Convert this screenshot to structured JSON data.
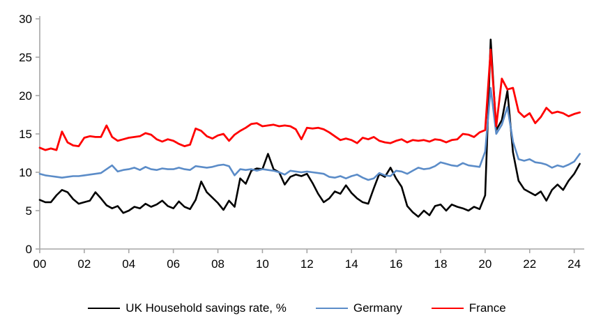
{
  "chart_data": {
    "type": "line",
    "title": "",
    "xlabel": "",
    "ylabel": "",
    "x_start": 2000,
    "x_step": 0.25,
    "xlim": [
      2000,
      2024.45
    ],
    "ylim": [
      0,
      30
    ],
    "grid": false,
    "legend_position": "bottom",
    "axis_color": "#a6a6a6",
    "tick_label_color": "#000000",
    "y_ticks": [
      0,
      5,
      10,
      15,
      20,
      25,
      30
    ],
    "x_ticks": [
      {
        "year": 2000,
        "label": "00"
      },
      {
        "year": 2002,
        "label": "02"
      },
      {
        "year": 2004,
        "label": "04"
      },
      {
        "year": 2006,
        "label": "06"
      },
      {
        "year": 2008,
        "label": "08"
      },
      {
        "year": 2010,
        "label": "10"
      },
      {
        "year": 2012,
        "label": "12"
      },
      {
        "year": 2014,
        "label": "14"
      },
      {
        "year": 2016,
        "label": "16"
      },
      {
        "year": 2018,
        "label": "18"
      },
      {
        "year": 2020,
        "label": "20"
      },
      {
        "year": 2022,
        "label": "22"
      },
      {
        "year": 2024,
        "label": "24"
      }
    ],
    "series": [
      {
        "name": "UK Household savings rate, %",
        "color": "#000000",
        "stroke_width": 2.6,
        "values": [
          6.4,
          6.1,
          6.1,
          7.0,
          7.7,
          7.4,
          6.5,
          5.9,
          6.1,
          6.3,
          7.4,
          6.6,
          5.7,
          5.3,
          5.6,
          4.7,
          5.0,
          5.5,
          5.3,
          5.9,
          5.5,
          5.8,
          6.3,
          5.6,
          5.3,
          6.2,
          5.5,
          5.2,
          6.4,
          8.8,
          7.4,
          6.7,
          6.0,
          5.1,
          6.3,
          5.5,
          9.2,
          8.5,
          10.2,
          10.5,
          10.4,
          12.4,
          10.4,
          10.0,
          8.4,
          9.4,
          9.7,
          9.5,
          9.8,
          8.6,
          7.2,
          6.1,
          6.6,
          7.5,
          7.2,
          8.3,
          7.3,
          6.6,
          6.1,
          5.9,
          7.9,
          9.8,
          9.4,
          10.6,
          9.2,
          8.1,
          5.6,
          4.8,
          4.2,
          5.0,
          4.4,
          5.6,
          5.8,
          5.0,
          5.8,
          5.5,
          5.3,
          5.0,
          5.5,
          5.2,
          7.0,
          27.3,
          15.5,
          16.8,
          20.6,
          12.6,
          8.9,
          7.8,
          7.4,
          7.0,
          7.5,
          6.3,
          7.7,
          8.4,
          7.7,
          8.9,
          9.8,
          11.1
        ]
      },
      {
        "name": "Germany",
        "color": "#5b8cc8",
        "stroke_width": 2.6,
        "values": [
          9.8,
          9.6,
          9.5,
          9.4,
          9.3,
          9.4,
          9.5,
          9.5,
          9.6,
          9.7,
          9.8,
          9.9,
          10.4,
          10.9,
          10.1,
          10.3,
          10.4,
          10.6,
          10.3,
          10.7,
          10.4,
          10.3,
          10.5,
          10.4,
          10.4,
          10.6,
          10.4,
          10.3,
          10.8,
          10.7,
          10.6,
          10.7,
          10.9,
          11.0,
          10.8,
          9.6,
          10.4,
          10.3,
          10.4,
          10.2,
          10.4,
          10.3,
          10.2,
          10.0,
          9.7,
          10.2,
          10.1,
          10.0,
          10.1,
          10.0,
          9.9,
          9.8,
          9.4,
          9.3,
          9.5,
          9.2,
          9.5,
          9.7,
          9.3,
          9.0,
          9.2,
          9.9,
          9.6,
          9.5,
          10.2,
          10.1,
          9.8,
          10.2,
          10.6,
          10.4,
          10.5,
          10.8,
          11.3,
          11.1,
          10.9,
          10.8,
          11.2,
          10.9,
          10.8,
          10.7,
          12.7,
          21.0,
          15.0,
          16.2,
          18.5,
          14.0,
          11.7,
          11.5,
          11.7,
          11.3,
          11.2,
          11.0,
          10.6,
          10.9,
          10.7,
          11.0,
          11.4,
          12.4
        ]
      },
      {
        "name": "France",
        "color": "#ff0000",
        "stroke_width": 2.8,
        "values": [
          13.2,
          12.9,
          13.1,
          12.9,
          15.3,
          13.9,
          13.5,
          13.4,
          14.5,
          14.7,
          14.6,
          14.6,
          16.1,
          14.6,
          14.1,
          14.3,
          14.5,
          14.6,
          14.7,
          15.1,
          14.9,
          14.3,
          14.0,
          14.3,
          14.1,
          13.7,
          13.4,
          13.6,
          15.7,
          15.4,
          14.7,
          14.4,
          14.8,
          15.0,
          14.1,
          14.9,
          15.4,
          15.8,
          16.3,
          16.4,
          16.0,
          16.1,
          16.2,
          16.0,
          16.1,
          16.0,
          15.6,
          14.3,
          15.8,
          15.7,
          15.8,
          15.6,
          15.2,
          14.7,
          14.2,
          14.4,
          14.2,
          13.8,
          14.5,
          14.3,
          14.6,
          14.1,
          13.9,
          13.8,
          14.1,
          14.3,
          13.9,
          14.2,
          14.1,
          14.2,
          14.0,
          14.3,
          14.2,
          13.9,
          14.2,
          14.3,
          15.0,
          14.9,
          14.6,
          15.2,
          15.5,
          26.0,
          16.0,
          22.2,
          20.8,
          21.0,
          17.9,
          17.2,
          17.7,
          16.4,
          17.2,
          18.4,
          17.7,
          17.9,
          17.7,
          17.3,
          17.6,
          17.8
        ]
      }
    ]
  }
}
